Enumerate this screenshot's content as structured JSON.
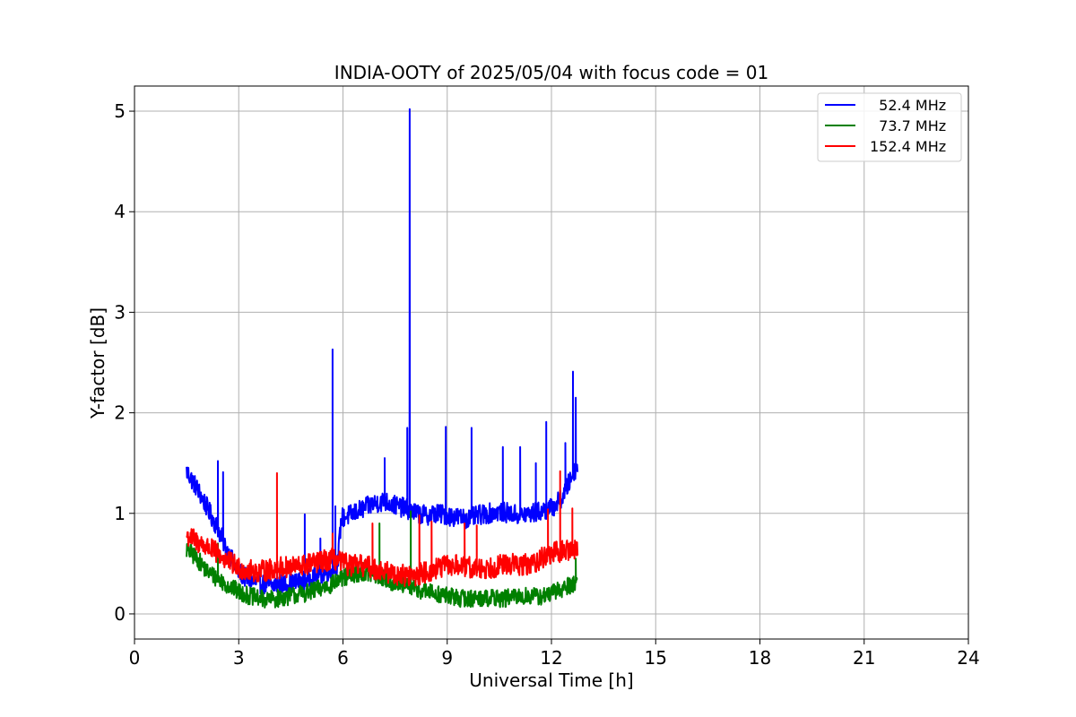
{
  "chart_data": {
    "type": "line",
    "title": "INDIA-OOTY of 2025/05/04 with focus code = 01",
    "xlabel": "Universal Time [h]",
    "ylabel": "Y-factor [dB]",
    "xlim": [
      0,
      24
    ],
    "ylim": [
      -0.25,
      5.25
    ],
    "xticks": [
      0,
      3,
      6,
      9,
      12,
      15,
      18,
      21,
      24
    ],
    "yticks": [
      0,
      1,
      2,
      3,
      4,
      5
    ],
    "grid": true,
    "legend_position": "top-right",
    "series": [
      {
        "name": "  52.4 MHz",
        "color": "#0000ff",
        "base": [
          [
            1.5,
            1.42
          ],
          [
            1.8,
            1.25
          ],
          [
            2.1,
            1.05
          ],
          [
            2.4,
            0.85
          ],
          [
            2.7,
            0.6
          ],
          [
            3.0,
            0.42
          ],
          [
            3.3,
            0.33
          ],
          [
            3.6,
            0.3
          ],
          [
            3.9,
            0.28
          ],
          [
            4.2,
            0.3
          ],
          [
            4.5,
            0.3
          ],
          [
            4.8,
            0.32
          ],
          [
            5.1,
            0.36
          ],
          [
            5.4,
            0.4
          ],
          [
            5.7,
            0.44
          ],
          [
            5.85,
            0.5
          ],
          [
            5.95,
            0.95
          ],
          [
            6.3,
            1.0
          ],
          [
            6.6,
            1.05
          ],
          [
            6.9,
            1.1
          ],
          [
            7.2,
            1.12
          ],
          [
            7.5,
            1.08
          ],
          [
            7.8,
            1.05
          ],
          [
            8.1,
            1.0
          ],
          [
            8.4,
            0.98
          ],
          [
            8.7,
            1.0
          ],
          [
            9.0,
            0.98
          ],
          [
            9.3,
            0.96
          ],
          [
            9.6,
            0.95
          ],
          [
            9.9,
            0.98
          ],
          [
            10.2,
            1.0
          ],
          [
            10.5,
            1.02
          ],
          [
            10.8,
            1.0
          ],
          [
            11.1,
            0.98
          ],
          [
            11.4,
            1.0
          ],
          [
            11.7,
            1.02
          ],
          [
            12.0,
            1.05
          ],
          [
            12.3,
            1.15
          ],
          [
            12.5,
            1.3
          ],
          [
            12.7,
            1.45
          ],
          [
            12.75,
            1.5
          ]
        ],
        "noise": 0.1,
        "spikes": [
          [
            2.4,
            1.52
          ],
          [
            2.55,
            1.41
          ],
          [
            4.1,
            0.45
          ],
          [
            4.9,
            0.99
          ],
          [
            5.35,
            0.75
          ],
          [
            5.7,
            2.63
          ],
          [
            5.78,
            1.07
          ],
          [
            7.2,
            1.55
          ],
          [
            7.85,
            1.85
          ],
          [
            7.92,
            5.02
          ],
          [
            8.96,
            1.86
          ],
          [
            9.7,
            1.85
          ],
          [
            10.6,
            1.66
          ],
          [
            11.1,
            1.66
          ],
          [
            11.55,
            1.5
          ],
          [
            11.85,
            1.91
          ],
          [
            12.4,
            1.7
          ],
          [
            12.62,
            2.41
          ],
          [
            12.7,
            2.15
          ]
        ]
      },
      {
        "name": "  73.7 MHz",
        "color": "#008000",
        "base": [
          [
            1.5,
            0.64
          ],
          [
            1.8,
            0.55
          ],
          [
            2.1,
            0.42
          ],
          [
            2.4,
            0.35
          ],
          [
            2.7,
            0.28
          ],
          [
            3.0,
            0.22
          ],
          [
            3.3,
            0.18
          ],
          [
            3.6,
            0.15
          ],
          [
            3.9,
            0.14
          ],
          [
            4.2,
            0.16
          ],
          [
            4.5,
            0.18
          ],
          [
            4.8,
            0.2
          ],
          [
            5.1,
            0.22
          ],
          [
            5.4,
            0.26
          ],
          [
            5.7,
            0.3
          ],
          [
            6.0,
            0.35
          ],
          [
            6.3,
            0.4
          ],
          [
            6.6,
            0.42
          ],
          [
            6.9,
            0.38
          ],
          [
            7.2,
            0.35
          ],
          [
            7.5,
            0.3
          ],
          [
            7.8,
            0.28
          ],
          [
            8.1,
            0.25
          ],
          [
            8.4,
            0.22
          ],
          [
            8.7,
            0.2
          ],
          [
            9.0,
            0.18
          ],
          [
            9.3,
            0.16
          ],
          [
            9.6,
            0.15
          ],
          [
            9.9,
            0.16
          ],
          [
            10.2,
            0.16
          ],
          [
            10.5,
            0.15
          ],
          [
            10.8,
            0.16
          ],
          [
            11.1,
            0.17
          ],
          [
            11.4,
            0.18
          ],
          [
            11.7,
            0.17
          ],
          [
            12.0,
            0.2
          ],
          [
            12.3,
            0.25
          ],
          [
            12.6,
            0.3
          ],
          [
            12.75,
            0.32
          ]
        ],
        "noise": 0.09,
        "spikes": [
          [
            2.4,
            0.7
          ],
          [
            7.05,
            0.9
          ],
          [
            7.95,
            1.02
          ],
          [
            12.7,
            0.55
          ]
        ]
      },
      {
        "name": "152.4 MHz",
        "color": "#ff0000",
        "base": [
          [
            1.5,
            0.78
          ],
          [
            1.8,
            0.72
          ],
          [
            2.1,
            0.66
          ],
          [
            2.4,
            0.6
          ],
          [
            2.7,
            0.52
          ],
          [
            3.0,
            0.46
          ],
          [
            3.3,
            0.43
          ],
          [
            3.6,
            0.42
          ],
          [
            3.9,
            0.44
          ],
          [
            4.2,
            0.46
          ],
          [
            4.5,
            0.46
          ],
          [
            4.8,
            0.48
          ],
          [
            5.1,
            0.5
          ],
          [
            5.4,
            0.52
          ],
          [
            5.7,
            0.55
          ],
          [
            6.0,
            0.5
          ],
          [
            6.3,
            0.48
          ],
          [
            6.6,
            0.48
          ],
          [
            6.9,
            0.45
          ],
          [
            7.2,
            0.42
          ],
          [
            7.5,
            0.4
          ],
          [
            7.8,
            0.38
          ],
          [
            8.1,
            0.38
          ],
          [
            8.4,
            0.42
          ],
          [
            8.7,
            0.45
          ],
          [
            9.0,
            0.48
          ],
          [
            9.3,
            0.48
          ],
          [
            9.6,
            0.46
          ],
          [
            9.9,
            0.45
          ],
          [
            10.2,
            0.46
          ],
          [
            10.5,
            0.48
          ],
          [
            10.8,
            0.5
          ],
          [
            11.1,
            0.48
          ],
          [
            11.4,
            0.5
          ],
          [
            11.7,
            0.55
          ],
          [
            12.0,
            0.6
          ],
          [
            12.3,
            0.62
          ],
          [
            12.6,
            0.65
          ],
          [
            12.75,
            0.65
          ]
        ],
        "noise": 0.11,
        "spikes": [
          [
            4.1,
            1.4
          ],
          [
            5.7,
            0.8
          ],
          [
            6.85,
            0.9
          ],
          [
            8.2,
            0.98
          ],
          [
            8.55,
            0.92
          ],
          [
            9.5,
            0.9
          ],
          [
            9.85,
            0.88
          ],
          [
            11.9,
            1.04
          ],
          [
            12.25,
            1.42
          ],
          [
            12.6,
            1.05
          ]
        ]
      }
    ]
  }
}
